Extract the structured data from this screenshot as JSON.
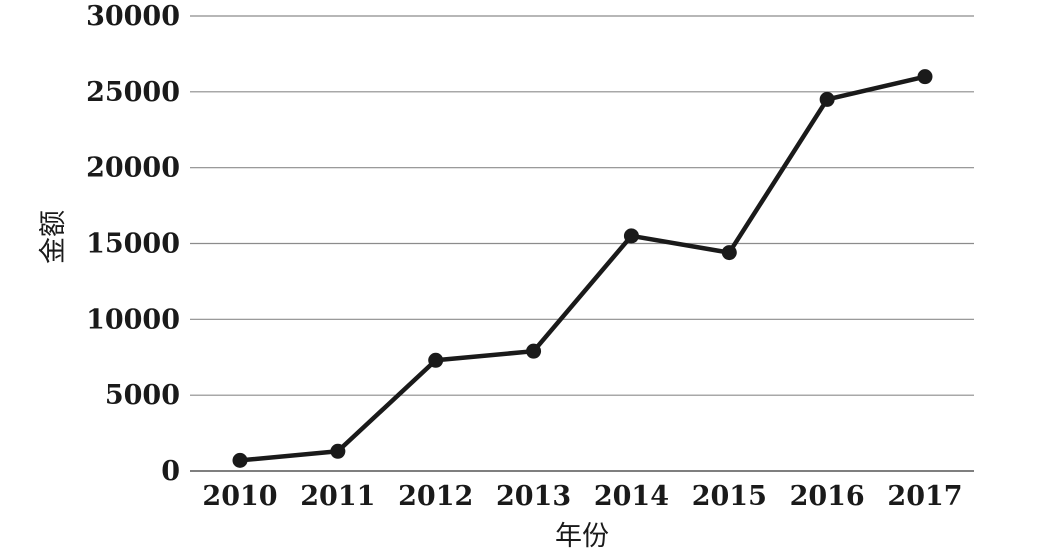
{
  "chart_data": {
    "type": "line",
    "title": "",
    "xlabel": "年份",
    "ylabel": "金额",
    "categories": [
      "2010",
      "2011",
      "2012",
      "2013",
      "2014",
      "2015",
      "2016",
      "2017"
    ],
    "series": [
      {
        "values": [
          700,
          1300,
          7300,
          7900,
          15500,
          14400,
          24500,
          26000
        ]
      }
    ],
    "ylim": [
      0,
      30000
    ],
    "yticks": [
      "0",
      "5000",
      "10000",
      "15000",
      "20000",
      "25000",
      "30000"
    ],
    "grid": "horizontal",
    "legend": "none",
    "line_color": "#1a1a1a",
    "grid_color": "#8c8c8c"
  }
}
